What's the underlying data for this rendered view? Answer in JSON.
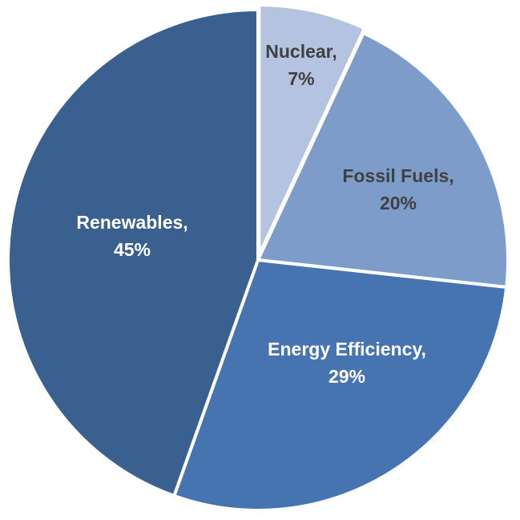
{
  "chart_data": {
    "type": "pie",
    "title": "",
    "start_angle_deg": 0,
    "direction": "clockwise",
    "slices": [
      {
        "name": "Nuclear",
        "value": 7,
        "label": "Nuclear,",
        "value_label": "7%",
        "color": "#b4c3df",
        "label_color": "#404040"
      },
      {
        "name": "Fossil Fuels",
        "value": 20,
        "label": "Fossil Fuels,",
        "value_label": "20%",
        "color": "#7e9cca",
        "label_color": "#404040"
      },
      {
        "name": "Energy Efficiency",
        "value": 29,
        "label": "Energy Efficiency,",
        "value_label": "29%",
        "color": "#4574b0",
        "label_color": "#ffffff"
      },
      {
        "name": "Renewables",
        "value": 45,
        "label": "Renewables,",
        "value_label": "45%",
        "color": "#3a6090",
        "label_color": "#ffffff"
      }
    ]
  }
}
